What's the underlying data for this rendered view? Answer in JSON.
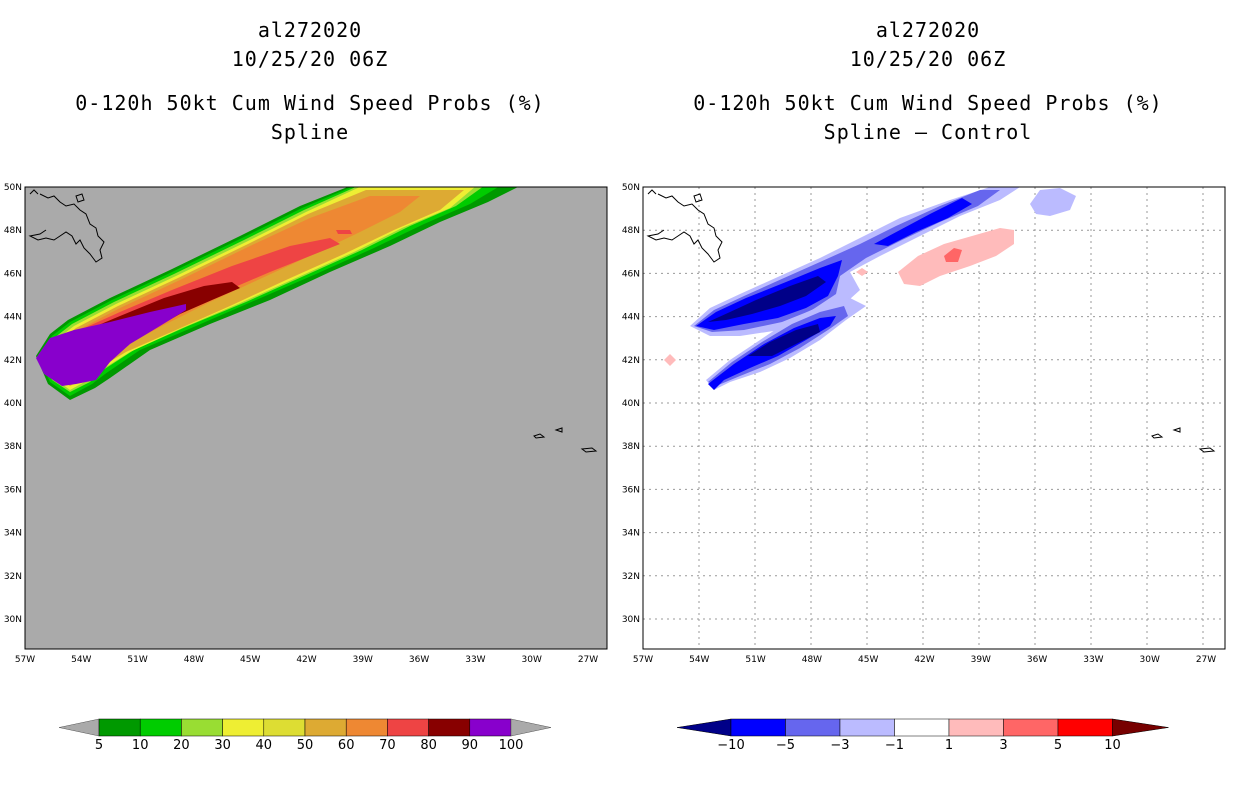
{
  "left_panel": {
    "storm_id": "al272020",
    "datetime": "10/25/20 06Z",
    "product": "0-120h 50kt Cum Wind Speed Probs (%)",
    "subtitle": "Spline",
    "background_color": "#aaaaaa"
  },
  "right_panel": {
    "storm_id": "al272020",
    "datetime": "10/25/20 06Z",
    "product": "0-120h 50kt Cum Wind Speed Probs (%)",
    "subtitle": "Spline — Control",
    "background_color": "#ffffff"
  },
  "axes": {
    "lat_labels": [
      "50N",
      "48N",
      "46N",
      "44N",
      "42N",
      "40N",
      "38N",
      "36N",
      "34N",
      "32N",
      "30N"
    ],
    "lon_labels": [
      "57W",
      "54W",
      "51W",
      "48W",
      "45W",
      "42W",
      "39W",
      "36W",
      "33W",
      "30W",
      "27W"
    ]
  },
  "colorbar_left": {
    "labels": [
      "5",
      "10",
      "20",
      "30",
      "40",
      "50",
      "60",
      "70",
      "80",
      "90",
      "100"
    ],
    "colors": [
      "#009900",
      "#00cc00",
      "#99dd33",
      "#eeee33",
      "#dddd33",
      "#ddaa33",
      "#ee8833",
      "#ee4444",
      "#880000",
      "#8800cc"
    ],
    "end_color": "#aaaaaa"
  },
  "colorbar_right": {
    "labels": [
      "−10",
      "−5",
      "−3",
      "−1",
      "1",
      "3",
      "5",
      "10"
    ],
    "colors": [
      "#0000cc",
      "#0000ff",
      "#6666ee",
      "#bbbbff",
      "#ffffff",
      "#ffbbbb",
      "#ff6666",
      "#ff0000",
      "#770000"
    ],
    "low_end_color": "#000088",
    "high_end_color": "#660000"
  }
}
